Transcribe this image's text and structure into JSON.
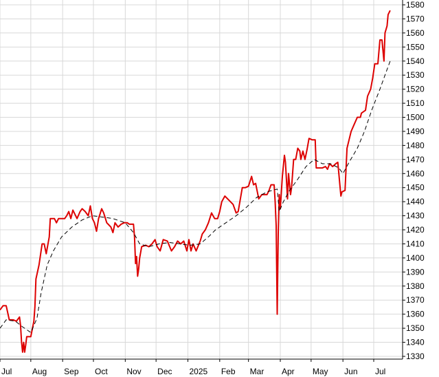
{
  "chart_data": {
    "type": "line",
    "title": "",
    "xlabel": "",
    "ylabel": "",
    "ylim": [
      1325,
      1582
    ],
    "y_ticks": [
      1330,
      1340,
      1350,
      1360,
      1370,
      1380,
      1390,
      1400,
      1410,
      1420,
      1430,
      1440,
      1450,
      1460,
      1470,
      1480,
      1490,
      1500,
      1510,
      1520,
      1530,
      1540,
      1550,
      1560,
      1570,
      1580
    ],
    "x_ticks": [
      {
        "label": "Jul",
        "day": 0
      },
      {
        "label": "Aug",
        "day": 30
      },
      {
        "label": "Sep",
        "day": 61
      },
      {
        "label": "Oct",
        "day": 91
      },
      {
        "label": "Nov",
        "day": 122
      },
      {
        "label": "Dec",
        "day": 152
      },
      {
        "label": "2025",
        "day": 183
      },
      {
        "label": "Feb",
        "day": 214
      },
      {
        "label": "Mar",
        "day": 242
      },
      {
        "label": "Apr",
        "day": 273
      },
      {
        "label": "May",
        "day": 303
      },
      {
        "label": "Jun",
        "day": 334
      },
      {
        "label": "Jul",
        "day": 364
      }
    ],
    "xlim_days": [
      0,
      398
    ],
    "grid": true,
    "legend": "none",
    "colors": {
      "price": "#dd0000",
      "average": "#000000",
      "grid": "#d8d8d8",
      "axis": "#000000"
    },
    "series": [
      {
        "style": "solid",
        "values": [
          [
            0,
            1363
          ],
          [
            3,
            1366
          ],
          [
            6,
            1366
          ],
          [
            9,
            1356
          ],
          [
            13,
            1356
          ],
          [
            16,
            1355
          ],
          [
            19,
            1358
          ],
          [
            20,
            1352
          ],
          [
            21,
            1340
          ],
          [
            22,
            1333
          ],
          [
            23,
            1340
          ],
          [
            24,
            1333
          ],
          [
            25,
            1338
          ],
          [
            26,
            1344
          ],
          [
            30,
            1344
          ],
          [
            33,
            1355
          ],
          [
            34,
            1365
          ],
          [
            35,
            1385
          ],
          [
            38,
            1395
          ],
          [
            41,
            1410
          ],
          [
            43,
            1410
          ],
          [
            45,
            1403
          ],
          [
            48,
            1415
          ],
          [
            49,
            1428
          ],
          [
            53,
            1428
          ],
          [
            55,
            1425
          ],
          [
            57,
            1428
          ],
          [
            63,
            1428
          ],
          [
            65,
            1430
          ],
          [
            67,
            1433
          ],
          [
            69,
            1428
          ],
          [
            71,
            1434
          ],
          [
            75,
            1428
          ],
          [
            78,
            1433
          ],
          [
            80,
            1435
          ],
          [
            83,
            1433
          ],
          [
            86,
            1430
          ],
          [
            88,
            1437
          ],
          [
            90,
            1428
          ],
          [
            92,
            1425
          ],
          [
            94,
            1419
          ],
          [
            96,
            1428
          ],
          [
            99,
            1435
          ],
          [
            101,
            1432
          ],
          [
            104,
            1425
          ],
          [
            108,
            1422
          ],
          [
            110,
            1418
          ],
          [
            112,
            1425
          ],
          [
            115,
            1422
          ],
          [
            118,
            1424
          ],
          [
            121,
            1425
          ],
          [
            124,
            1425
          ],
          [
            126,
            1424
          ],
          [
            130,
            1424
          ],
          [
            131,
            1415
          ],
          [
            132,
            1396
          ],
          [
            133,
            1401
          ],
          [
            134,
            1387
          ],
          [
            135,
            1392
          ],
          [
            136,
            1400
          ],
          [
            138,
            1408
          ],
          [
            142,
            1409
          ],
          [
            145,
            1408
          ],
          [
            148,
            1410
          ],
          [
            151,
            1413
          ],
          [
            153,
            1408
          ],
          [
            156,
            1405
          ],
          [
            159,
            1413
          ],
          [
            163,
            1412
          ],
          [
            167,
            1405
          ],
          [
            170,
            1408
          ],
          [
            173,
            1412
          ],
          [
            176,
            1410
          ],
          [
            179,
            1412
          ],
          [
            182,
            1405
          ],
          [
            184,
            1413
          ],
          [
            186,
            1405
          ],
          [
            188,
            1410
          ],
          [
            191,
            1405
          ],
          [
            195,
            1412
          ],
          [
            197,
            1417
          ],
          [
            200,
            1420
          ],
          [
            203,
            1425
          ],
          [
            206,
            1432
          ],
          [
            209,
            1428
          ],
          [
            212,
            1428
          ],
          [
            214,
            1433
          ],
          [
            216,
            1440
          ],
          [
            219,
            1444
          ],
          [
            223,
            1441
          ],
          [
            227,
            1438
          ],
          [
            230,
            1432
          ],
          [
            232,
            1433
          ],
          [
            236,
            1450
          ],
          [
            239,
            1450
          ],
          [
            242,
            1451
          ],
          [
            245,
            1458
          ],
          [
            247,
            1452
          ],
          [
            249,
            1453
          ],
          [
            252,
            1442
          ],
          [
            255,
            1445
          ],
          [
            260,
            1445
          ],
          [
            262,
            1448
          ],
          [
            264,
            1452
          ],
          [
            267,
            1452
          ],
          [
            268,
            1440
          ],
          [
            269,
            1423
          ],
          [
            270,
            1360
          ],
          [
            271,
            1418
          ],
          [
            272,
            1445
          ],
          [
            273,
            1435
          ],
          [
            275,
            1458
          ],
          [
            277,
            1473
          ],
          [
            278,
            1468
          ],
          [
            280,
            1442
          ],
          [
            281,
            1460
          ],
          [
            283,
            1445
          ],
          [
            284,
            1450
          ],
          [
            286,
            1470
          ],
          [
            288,
            1470
          ],
          [
            290,
            1478
          ],
          [
            292,
            1476
          ],
          [
            293,
            1470
          ],
          [
            295,
            1476
          ],
          [
            297,
            1470
          ],
          [
            299,
            1477
          ],
          [
            301,
            1485
          ],
          [
            304,
            1484
          ],
          [
            307,
            1484
          ],
          [
            308,
            1464
          ],
          [
            314,
            1464
          ],
          [
            317,
            1465
          ],
          [
            319,
            1463
          ],
          [
            321,
            1467
          ],
          [
            324,
            1465
          ],
          [
            327,
            1467
          ],
          [
            329,
            1468
          ],
          [
            331,
            1452
          ],
          [
            332,
            1444
          ],
          [
            333,
            1447
          ],
          [
            336,
            1448
          ],
          [
            338,
            1478
          ],
          [
            340,
            1484
          ],
          [
            342,
            1490
          ],
          [
            345,
            1495
          ],
          [
            348,
            1500
          ],
          [
            351,
            1500
          ],
          [
            352,
            1503
          ],
          [
            356,
            1505
          ],
          [
            358,
            1515
          ],
          [
            361,
            1520
          ],
          [
            363,
            1528
          ],
          [
            365,
            1538
          ],
          [
            368,
            1538
          ],
          [
            370,
            1555
          ],
          [
            372,
            1555
          ],
          [
            374,
            1540
          ],
          [
            375,
            1560
          ],
          [
            377,
            1565
          ],
          [
            378,
            1573
          ],
          [
            380,
            1576
          ]
        ]
      },
      {
        "style": "dashed",
        "values": [
          [
            0,
            1350
          ],
          [
            6,
            1356
          ],
          [
            15,
            1355
          ],
          [
            22,
            1351
          ],
          [
            30,
            1347
          ],
          [
            36,
            1357
          ],
          [
            40,
            1375
          ],
          [
            46,
            1395
          ],
          [
            52,
            1405
          ],
          [
            60,
            1415
          ],
          [
            70,
            1422
          ],
          [
            80,
            1427
          ],
          [
            90,
            1430
          ],
          [
            100,
            1429
          ],
          [
            110,
            1428
          ],
          [
            122,
            1425
          ],
          [
            130,
            1418
          ],
          [
            136,
            1410
          ],
          [
            145,
            1408
          ],
          [
            155,
            1410
          ],
          [
            165,
            1411
          ],
          [
            175,
            1410
          ],
          [
            185,
            1409
          ],
          [
            195,
            1410
          ],
          [
            203,
            1415
          ],
          [
            210,
            1420
          ],
          [
            220,
            1425
          ],
          [
            230,
            1430
          ],
          [
            240,
            1436
          ],
          [
            250,
            1443
          ],
          [
            260,
            1447
          ],
          [
            270,
            1449
          ],
          [
            272,
            1433
          ],
          [
            276,
            1440
          ],
          [
            282,
            1448
          ],
          [
            290,
            1456
          ],
          [
            298,
            1465
          ],
          [
            306,
            1470
          ],
          [
            314,
            1467
          ],
          [
            322,
            1467
          ],
          [
            330,
            1464
          ],
          [
            334,
            1460
          ],
          [
            340,
            1468
          ],
          [
            348,
            1478
          ],
          [
            355,
            1490
          ],
          [
            362,
            1505
          ],
          [
            370,
            1520
          ],
          [
            376,
            1532
          ],
          [
            380,
            1540
          ]
        ]
      }
    ]
  }
}
